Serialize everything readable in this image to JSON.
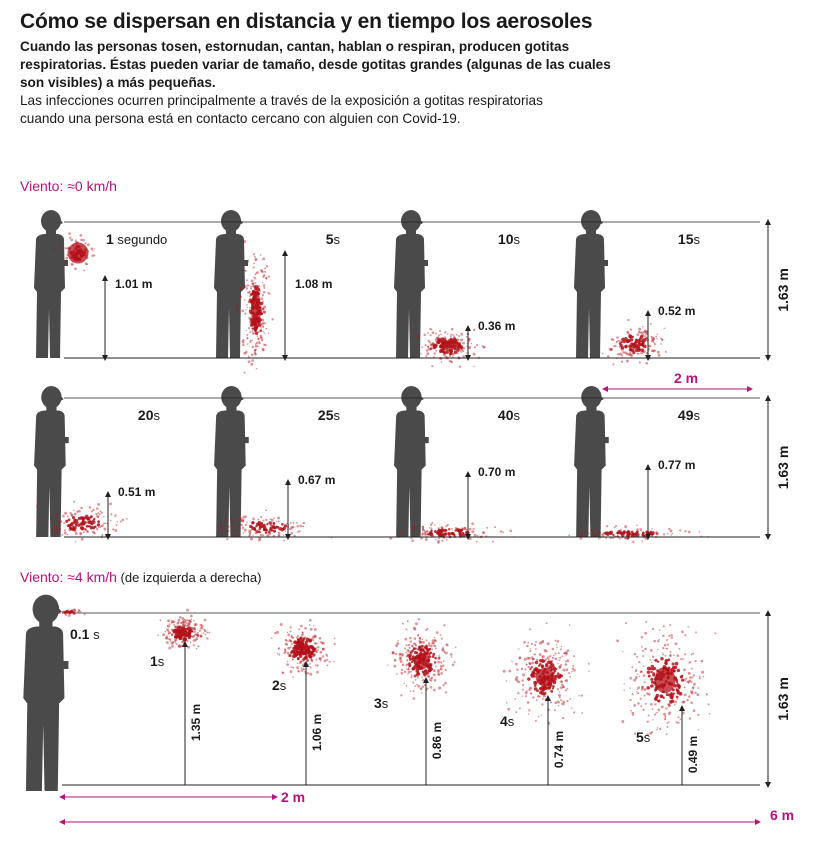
{
  "header": {
    "title": "Cómo se dispersan en distancia y en tiempo los aerosoles",
    "subtitle_lines": [
      "Cuando las personas tosen, estornudan, cantan, hablan o respiran, producen gotitas",
      "respiratorias. Éstas pueden variar de tamaño, desde gotitas grandes (algunas de las cuales",
      "son visibles) a más pequeñas."
    ],
    "body_lines": [
      "Las infecciones ocurren principalmente a través de la exposición a gotitas respiratorias",
      "cuando una persona está en contacto cercano con alguien con Covid-19."
    ]
  },
  "still_air": {
    "label": "Viento: ≈0 km/h",
    "height_label": "1.63 m",
    "distance_label": "2 m",
    "panels": [
      {
        "time_num": "1",
        "time_unit": " segundo",
        "height": "1.01 m"
      },
      {
        "time_num": "5",
        "time_unit": "s",
        "height": "1.08 m"
      },
      {
        "time_num": "10",
        "time_unit": "s",
        "height": "0.36 m"
      },
      {
        "time_num": "15",
        "time_unit": "s",
        "height": "0.52 m"
      },
      {
        "time_num": "20",
        "time_unit": "s",
        "height": "0.51 m"
      },
      {
        "time_num": "25",
        "time_unit": "s",
        "height": "0.67 m"
      },
      {
        "time_num": "40",
        "time_unit": "s",
        "height": "0.70 m"
      },
      {
        "time_num": "49",
        "time_unit": "s",
        "height": "0.77 m"
      }
    ]
  },
  "windy": {
    "label": "Viento: ≈4 km/h",
    "label_note": "(de izquierda a derecha)",
    "height_label": "1.63 m",
    "distance_short": "2 m",
    "distance_long": "6 m",
    "steps": [
      {
        "time_num": "0.1",
        "time_unit": " s",
        "height": ""
      },
      {
        "time_num": "1",
        "time_unit": "s",
        "height": "1.35 m"
      },
      {
        "time_num": "2",
        "time_unit": "s",
        "height": "1.06 m"
      },
      {
        "time_num": "3",
        "time_unit": "s",
        "height": "0.86 m"
      },
      {
        "time_num": "4",
        "time_unit": "s",
        "height": "0.74 m"
      },
      {
        "time_num": "5",
        "time_unit": "s",
        "height": "0.49 m"
      }
    ]
  },
  "colors": {
    "accent": "#b5127e",
    "droplet": "#b3121a",
    "silhouette": "#4a4a4a",
    "line": "#222222"
  }
}
